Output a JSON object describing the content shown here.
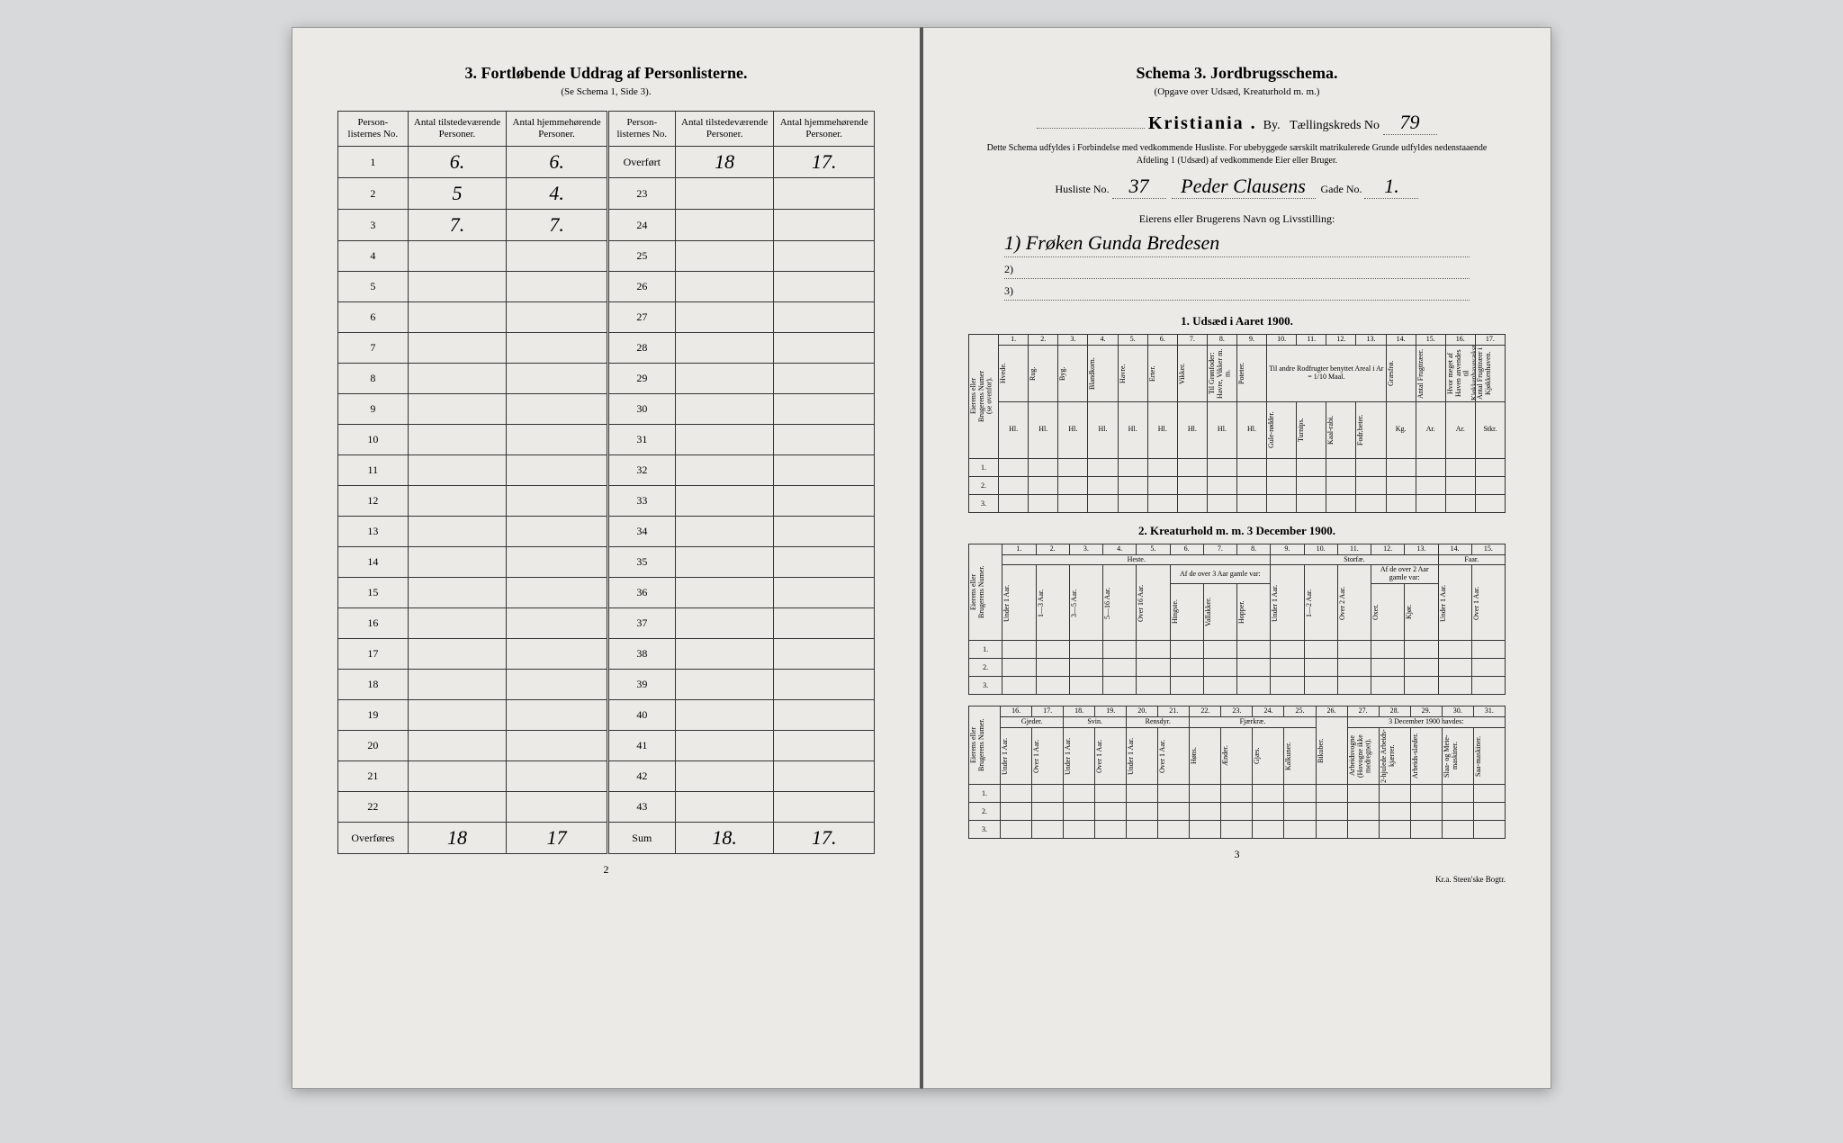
{
  "left": {
    "title": "3.   Fortløbende Uddrag af Personlisterne.",
    "subtitle": "(Se Schema 1, Side 3).",
    "columns": [
      "Person-listernes No.",
      "Antal tilstedeværende Personer.",
      "Antal hjemmehørende Personer.",
      "Person-listernes No.",
      "Antal tilstedeværende Personer.",
      "Antal hjemmehørende Personer."
    ],
    "rows_left": [
      {
        "no": "1",
        "a": "6.",
        "b": "6."
      },
      {
        "no": "2",
        "a": "5",
        "b": "4."
      },
      {
        "no": "3",
        "a": "7.",
        "b": "7."
      },
      {
        "no": "4",
        "a": "",
        "b": ""
      },
      {
        "no": "5",
        "a": "",
        "b": ""
      },
      {
        "no": "6",
        "a": "",
        "b": ""
      },
      {
        "no": "7",
        "a": "",
        "b": ""
      },
      {
        "no": "8",
        "a": "",
        "b": ""
      },
      {
        "no": "9",
        "a": "",
        "b": ""
      },
      {
        "no": "10",
        "a": "",
        "b": ""
      },
      {
        "no": "11",
        "a": "",
        "b": ""
      },
      {
        "no": "12",
        "a": "",
        "b": ""
      },
      {
        "no": "13",
        "a": "",
        "b": ""
      },
      {
        "no": "14",
        "a": "",
        "b": ""
      },
      {
        "no": "15",
        "a": "",
        "b": ""
      },
      {
        "no": "16",
        "a": "",
        "b": ""
      },
      {
        "no": "17",
        "a": "",
        "b": ""
      },
      {
        "no": "18",
        "a": "",
        "b": ""
      },
      {
        "no": "19",
        "a": "",
        "b": ""
      },
      {
        "no": "20",
        "a": "",
        "b": ""
      },
      {
        "no": "21",
        "a": "",
        "b": ""
      },
      {
        "no": "22",
        "a": "",
        "b": ""
      }
    ],
    "rows_right": [
      {
        "no": "Overført",
        "a": "18",
        "b": "17."
      },
      {
        "no": "23",
        "a": "",
        "b": ""
      },
      {
        "no": "24",
        "a": "",
        "b": ""
      },
      {
        "no": "25",
        "a": "",
        "b": ""
      },
      {
        "no": "26",
        "a": "",
        "b": ""
      },
      {
        "no": "27",
        "a": "",
        "b": ""
      },
      {
        "no": "28",
        "a": "",
        "b": ""
      },
      {
        "no": "29",
        "a": "",
        "b": ""
      },
      {
        "no": "30",
        "a": "",
        "b": ""
      },
      {
        "no": "31",
        "a": "",
        "b": ""
      },
      {
        "no": "32",
        "a": "",
        "b": ""
      },
      {
        "no": "33",
        "a": "",
        "b": ""
      },
      {
        "no": "34",
        "a": "",
        "b": ""
      },
      {
        "no": "35",
        "a": "",
        "b": ""
      },
      {
        "no": "36",
        "a": "",
        "b": ""
      },
      {
        "no": "37",
        "a": "",
        "b": ""
      },
      {
        "no": "38",
        "a": "",
        "b": ""
      },
      {
        "no": "39",
        "a": "",
        "b": ""
      },
      {
        "no": "40",
        "a": "",
        "b": ""
      },
      {
        "no": "41",
        "a": "",
        "b": ""
      },
      {
        "no": "42",
        "a": "",
        "b": ""
      },
      {
        "no": "43",
        "a": "",
        "b": ""
      }
    ],
    "footer_left": {
      "label": "Overføres",
      "a": "18",
      "b": "17"
    },
    "footer_right": {
      "label": "Sum",
      "a": "18.",
      "b": "17."
    },
    "page_num": "2"
  },
  "right": {
    "title": "Schema 3.   Jordbrugsschema.",
    "subtitle": "(Opgave over Udsæd, Kreaturhold m. m.)",
    "city": "Kristiania .",
    "by_label": "By.",
    "kreds_label": "Tællingskreds No",
    "kreds_no": "79",
    "paragraph": "Dette Schema udfyldes i Forbindelse med vedkommende Husliste. For ubebyggede særskilt matrikulerede Grunde udfyldes nedenstaaende Afdeling 1 (Udsæd) af vedkommende Eier eller Bruger.",
    "husliste_label": "Husliste No.",
    "husliste_no": "37",
    "husliste_name": "Peder Clausens",
    "gade_label": "Gade No.",
    "gade_no": "1.",
    "owner_title": "Eierens eller Brugerens Navn og Livsstilling:",
    "owner_lines": [
      "1)  Frøken Gunda Bredesen",
      "2)",
      "3)"
    ],
    "section1_title": "1.  Udsæd i Aaret 1900.",
    "t1": {
      "row_label": "Eierens eller Brugerens Numer (se ovenfor).",
      "col_nums": [
        "1.",
        "2.",
        "3.",
        "4.",
        "5.",
        "6.",
        "7.",
        "8.",
        "9.",
        "10.",
        "11.",
        "12.",
        "13.",
        "14.",
        "15.",
        "16.",
        "17."
      ],
      "cols": [
        "Hvede.",
        "Rug.",
        "Byg.",
        "Blandkorn.",
        "Havre.",
        "Erter.",
        "Vikker.",
        "Til Grønfoder: Havre, Vikker m. m.",
        "Poteter.",
        "Til andre Rodfrugter benyttet Areal i Ar = 1/10 Maal.",
        "",
        "",
        "",
        "Græsfrø.",
        "Antal Frugttræer.",
        "Hvor meget af Haven anvendes til Kjøkkenhavevækster.",
        "Antal Frugttræer i Kjøkkenhaven."
      ],
      "sub_cols_10_13": [
        "Gule-rødder.",
        "Turnips.",
        "Kaal-rabi.",
        "Fodr.beter."
      ],
      "units": [
        "Hl.",
        "Hl.",
        "Hl.",
        "Hl.",
        "Hl.",
        "Hl.",
        "Hl.",
        "Hl.",
        "Hl.",
        "Ar.",
        "Ar.",
        "Ar.",
        "Ar.",
        "Kg.",
        "Ar.",
        "Ar.",
        "Stkr."
      ],
      "row_ids": [
        "1.",
        "2.",
        "3."
      ]
    },
    "section2_title": "2.  Kreaturhold m. m. 3 December 1900.",
    "t2a": {
      "row_label": "Eierens eller Brugerens Numer.",
      "col_nums": [
        "1.",
        "2.",
        "3.",
        "4.",
        "5.",
        "6.",
        "7.",
        "8.",
        "9.",
        "10.",
        "11.",
        "12.",
        "13.",
        "14.",
        "15."
      ],
      "group1": "Heste.",
      "group2": "Storfæ.",
      "group3": "Faar.",
      "cols_heste": [
        "Under 1 Aar.",
        "1—3 Aar.",
        "3—5 Aar.",
        "5—16 Aar.",
        "Over 16 Aar."
      ],
      "sub_heste": "Af de over 3 Aar gamle var:",
      "sub_heste_cols": [
        "Hingste.",
        "Vallakker.",
        "Hopper."
      ],
      "cols_storfe": [
        "1—2 Aar.",
        "Over 2 Aar."
      ],
      "sub_storfe": "Af de over 2 Aar gamle var:",
      "sub_storfe_cols": [
        "Oxer.",
        "Kjør."
      ],
      "storfe_first": "Under 1 Aar.",
      "cols_faar": [
        "Under 1 Aar.",
        "Over 1 Aar."
      ],
      "row_ids": [
        "1.",
        "2.",
        "3."
      ]
    },
    "t2b": {
      "row_label": "Eierens eller Brugerens Numer.",
      "col_nums": [
        "16.",
        "17.",
        "18.",
        "19.",
        "20.",
        "21.",
        "22.",
        "23.",
        "24.",
        "25.",
        "26.",
        "27.",
        "28.",
        "29.",
        "30.",
        "31."
      ],
      "groups": [
        "Gjeder.",
        "Svin.",
        "Rensdyr.",
        "Fjærkræ.",
        "",
        "3 December 1900 havdes:"
      ],
      "cols": [
        "Under 1 Aar.",
        "Over 1 Aar.",
        "Under 1 Aar.",
        "Over 1 Aar.",
        "Under 1 Aar.",
        "Over 1 Aar.",
        "Høns.",
        "Ænder.",
        "Gjæs.",
        "Kalkuner.",
        "Bikuber.",
        "Arbeidsvogne (Hovogne ikke medregnet).",
        "2-hjulede Arbeids-kjærrer.",
        "Arbeids-slæder.",
        "Slaa- og Meie-maskiner.",
        "Saa-maskiner."
      ],
      "row_ids": [
        "1.",
        "2.",
        "3."
      ]
    },
    "page_num": "3",
    "printer": "Kr.a.  Steen'ske Bogtr."
  },
  "colors": {
    "page_bg": "#ebeae6",
    "body_bg": "#d8d9db",
    "border": "#333333",
    "text": "#1a1a1a"
  }
}
